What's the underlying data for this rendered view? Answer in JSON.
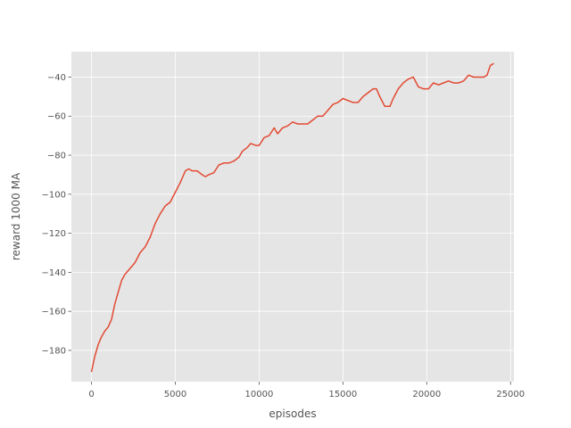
{
  "chart_data": {
    "type": "line",
    "title": "",
    "xlabel": "episodes",
    "ylabel": "reward 1000 MA",
    "xlim": [
      -1200,
      25200
    ],
    "ylim": [
      -196,
      -27
    ],
    "xticks": [
      0,
      5000,
      10000,
      15000,
      20000,
      25000
    ],
    "xtick_labels": [
      "0",
      "5000",
      "10000",
      "15000",
      "20000",
      "25000"
    ],
    "yticks": [
      -180,
      -160,
      -140,
      -120,
      -100,
      -80,
      -60,
      -40
    ],
    "ytick_labels": [
      "−180",
      "−160",
      "−140",
      "−120",
      "−100",
      "−80",
      "−60",
      "−40"
    ],
    "grid": true,
    "style": "ggplot",
    "colors": {
      "background": "#e5e5e5",
      "grid": "#ffffff",
      "line": "#e24a33",
      "tick": "#555555",
      "text": "#555555"
    },
    "series": [
      {
        "x": [
          0,
          200,
          400,
          600,
          800,
          1000,
          1200,
          1400,
          1600,
          1800,
          2000,
          2300,
          2600,
          2900,
          3200,
          3500,
          3800,
          4100,
          4400,
          4700,
          5000,
          5300,
          5600,
          5800,
          6000,
          6300,
          6600,
          6800,
          7000,
          7300,
          7600,
          7900,
          8200,
          8500,
          8800,
          9000,
          9300,
          9500,
          9800,
          10000,
          10300,
          10600,
          10900,
          11100,
          11400,
          11700,
          12000,
          12300,
          12600,
          12900,
          13200,
          13500,
          13800,
          14100,
          14400,
          14700,
          15000,
          15300,
          15600,
          15900,
          16200,
          16500,
          16800,
          17000,
          17200,
          17500,
          17800,
          18000,
          18300,
          18600,
          18900,
          19200,
          19500,
          19800,
          20100,
          20400,
          20700,
          21000,
          21300,
          21600,
          21900,
          22200,
          22500,
          22800,
          23100,
          23400,
          23600,
          23800,
          24000
        ],
        "y": [
          -191,
          -183,
          -177,
          -173,
          -170,
          -168,
          -164,
          -156,
          -150,
          -144,
          -141,
          -138,
          -135,
          -130,
          -127,
          -122,
          -115,
          -110,
          -106,
          -104,
          -99,
          -94,
          -88,
          -87,
          -88,
          -88,
          -90,
          -91,
          -90,
          -89,
          -85,
          -84,
          -84,
          -83,
          -81,
          -78,
          -76,
          -74,
          -75,
          -75,
          -71,
          -70,
          -66,
          -69,
          -66,
          -65,
          -63,
          -64,
          -64,
          -64,
          -62,
          -60,
          -60,
          -57,
          -54,
          -53,
          -51,
          -52,
          -53,
          -53,
          -50,
          -48,
          -46,
          -46,
          -50,
          -55,
          -55,
          -51,
          -46,
          -43,
          -41,
          -40,
          -45,
          -46,
          -46,
          -43,
          -44,
          -43,
          -42,
          -43,
          -43,
          -42,
          -39,
          -40,
          -40,
          -40,
          -39,
          -34,
          -33
        ]
      }
    ]
  }
}
